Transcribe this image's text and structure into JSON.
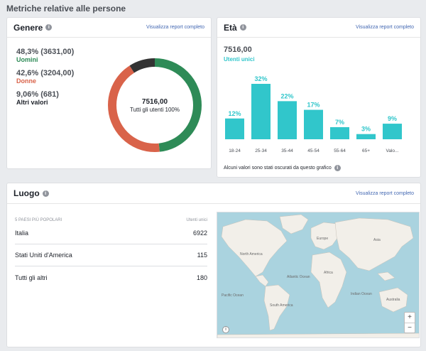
{
  "page_title": "Metriche relative alle persone",
  "colors": {
    "men": "#2e8b57",
    "women": "#d9634a",
    "other": "#333333",
    "age_bar": "#31c6cb",
    "link": "#4267b2"
  },
  "gender": {
    "title": "Genere",
    "link": "Visualizza report completo",
    "stats": [
      {
        "value": "48,3% (3631,00)",
        "label": "Uomini",
        "color": "#2e8b57"
      },
      {
        "value": "42,6% (3204,00)",
        "label": "Donne",
        "color": "#d9634a"
      },
      {
        "value": "9,06% (681)",
        "label": "Altri valori",
        "color": "#1d2129"
      }
    ],
    "donut_total": "7516,00",
    "donut_sub": "Tutti gli utenti 100%"
  },
  "age": {
    "title": "Età",
    "link": "Visualizza report completo",
    "total": "7516,00",
    "subtitle": "Utenti unici",
    "note": "Alcuni valori sono stati oscurati da questo grafico"
  },
  "chart_data": {
    "type": "bar",
    "categories": [
      "18-24",
      "25-34",
      "35-44",
      "45-54",
      "55-64",
      "65+",
      "Valo..."
    ],
    "values": [
      12,
      32,
      22,
      17,
      7,
      3,
      9
    ],
    "data_labels": [
      "12%",
      "32%",
      "22%",
      "17%",
      "7%",
      "3%",
      "9%"
    ],
    "grid": false
  },
  "location": {
    "title": "Luogo",
    "link": "Visualizza report completo",
    "col_country": "5 PAESI PIÙ POPOLARI",
    "col_users": "Utenti unici",
    "rows": [
      {
        "name": "Italia",
        "value": "6922"
      },
      {
        "name": "Stati Uniti d'America",
        "value": "115"
      },
      {
        "name": "Tutti gli altri",
        "value": "180"
      }
    ],
    "map_labels": {
      "north_america": "North America",
      "south_america": "South America",
      "atlantic": "Atlantic Ocean",
      "pacific": "Pacific Ocean",
      "indian": "Indian Ocean",
      "africa": "Africa",
      "asia": "Asia",
      "europe": "Europe",
      "australia": "Australia"
    },
    "zoom_in": "+",
    "zoom_out": "−",
    "map_info": "i"
  }
}
